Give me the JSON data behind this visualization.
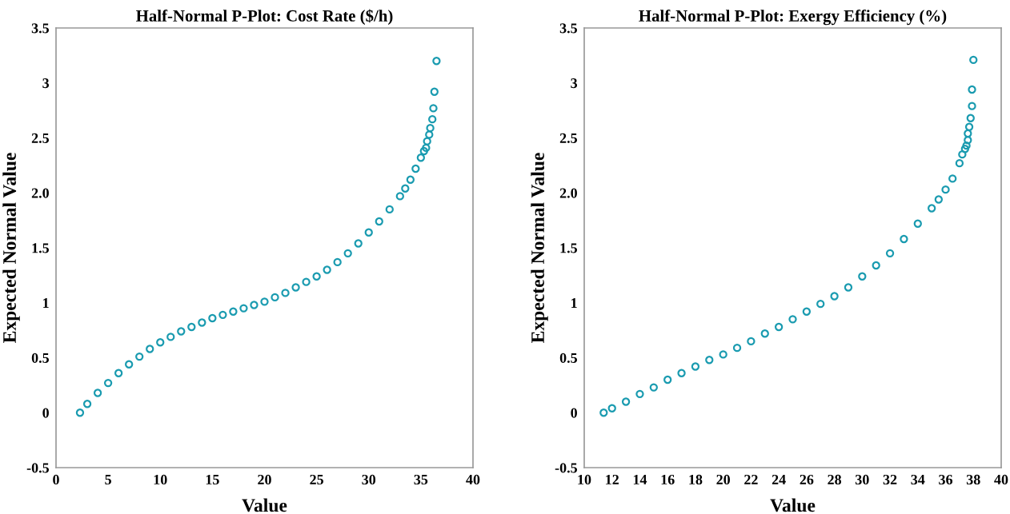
{
  "chart_data": [
    {
      "type": "scatter",
      "title": "Half-Normal P-Plot: Cost Rate ($/h)",
      "xlabel": "Value",
      "ylabel": "Expected Normal Value",
      "marker": "circle",
      "grid": false,
      "xlim": [
        0,
        40
      ],
      "xticks": [
        0,
        5,
        10,
        15,
        20,
        25,
        30,
        35,
        40
      ],
      "ylim": [
        -0.5,
        3.5
      ],
      "yticks": [
        -0.5,
        0,
        0.5,
        1,
        1.5,
        {
          "value": 2,
          "label": "2.0"
        },
        2.5,
        3,
        3.5
      ],
      "series": [
        {
          "color": "#1a9bb0",
          "x": [
            2.3,
            3,
            4,
            5,
            6,
            7,
            8,
            9,
            10,
            11,
            12,
            13,
            14,
            15,
            16,
            17,
            18,
            19,
            20,
            21,
            22,
            23,
            24,
            25,
            26,
            27,
            28,
            29,
            30,
            31,
            32,
            33,
            33.5,
            34,
            34.5,
            35,
            35.3,
            35.5,
            35.6,
            35.8,
            35.9,
            36.1,
            36.2,
            36.3,
            36.5
          ],
          "values": [
            0,
            0.08,
            0.18,
            0.27,
            0.36,
            0.44,
            0.51,
            0.58,
            0.64,
            0.69,
            0.74,
            0.78,
            0.82,
            0.86,
            0.89,
            0.92,
            0.95,
            0.98,
            1.01,
            1.05,
            1.09,
            1.14,
            1.19,
            1.24,
            1.3,
            1.37,
            1.45,
            1.54,
            1.64,
            1.74,
            1.85,
            1.97,
            2.04,
            2.12,
            2.22,
            2.32,
            2.38,
            2.41,
            2.47,
            2.53,
            2.59,
            2.67,
            2.77,
            2.92,
            3.2
          ]
        }
      ]
    },
    {
      "type": "scatter",
      "title": "Half-Normal P-Plot: Exergy Efficiency (%)",
      "xlabel": "Value",
      "ylabel": "Expected Normal Value",
      "marker": "circle",
      "grid": false,
      "xlim": [
        10,
        40
      ],
      "xticks": [
        10,
        12,
        14,
        16,
        18,
        20,
        22,
        24,
        26,
        28,
        30,
        32,
        34,
        36,
        38,
        40
      ],
      "ylim": [
        -0.5,
        3.5
      ],
      "yticks": [
        -0.5,
        0,
        0.5,
        1,
        1.5,
        {
          "value": 2,
          "label": "2.0"
        },
        2.5,
        3,
        3.5
      ],
      "series": [
        {
          "color": "#1a9bb0",
          "x": [
            11.4,
            12,
            13,
            14,
            15,
            16,
            17,
            18,
            19,
            20,
            21,
            22,
            23,
            24,
            25,
            26,
            27,
            28,
            29,
            30,
            31,
            32,
            33,
            34,
            35,
            35.5,
            36,
            36.5,
            37,
            37.2,
            37.4,
            37.5,
            37.6,
            37.6,
            37.7,
            37.8,
            37.9,
            37.9,
            38.0
          ],
          "values": [
            0,
            0.04,
            0.1,
            0.17,
            0.23,
            0.3,
            0.36,
            0.42,
            0.48,
            0.53,
            0.59,
            0.65,
            0.72,
            0.78,
            0.85,
            0.92,
            0.99,
            1.06,
            1.14,
            1.24,
            1.34,
            1.45,
            1.58,
            1.72,
            1.86,
            1.94,
            2.03,
            2.13,
            2.27,
            2.35,
            2.4,
            2.43,
            2.48,
            2.54,
            2.6,
            2.68,
            2.79,
            2.94,
            3.21
          ]
        }
      ]
    }
  ]
}
